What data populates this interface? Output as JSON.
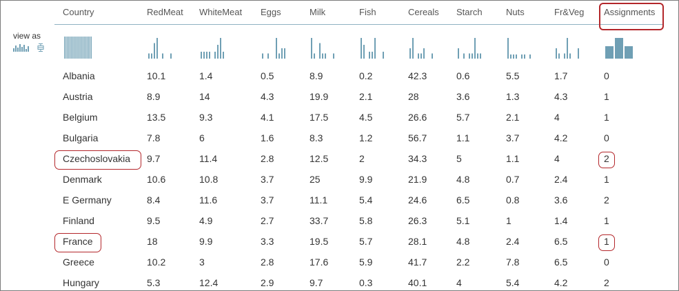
{
  "view_as": {
    "label": "view as",
    "options": [
      {
        "icon": "histogram-icon"
      },
      {
        "icon": "boxplot-icon"
      }
    ]
  },
  "columns": [
    "Country",
    "RedMeat",
    "WhiteMeat",
    "Eggs",
    "Milk",
    "Fish",
    "Cereals",
    "Starch",
    "Nuts",
    "Fr&Veg",
    "Assignments"
  ],
  "rows": [
    [
      "Albania",
      "10.1",
      "1.4",
      "0.5",
      "8.9",
      "0.2",
      "42.3",
      "0.6",
      "5.5",
      "1.7",
      "0"
    ],
    [
      "Austria",
      "8.9",
      "14",
      "4.3",
      "19.9",
      "2.1",
      "28",
      "3.6",
      "1.3",
      "4.3",
      "1"
    ],
    [
      "Belgium",
      "13.5",
      "9.3",
      "4.1",
      "17.5",
      "4.5",
      "26.6",
      "5.7",
      "2.1",
      "4",
      "1"
    ],
    [
      "Bulgaria",
      "7.8",
      "6",
      "1.6",
      "8.3",
      "1.2",
      "56.7",
      "1.1",
      "3.7",
      "4.2",
      "0"
    ],
    [
      "Czechoslovakia",
      "9.7",
      "11.4",
      "2.8",
      "12.5",
      "2",
      "34.3",
      "5",
      "1.1",
      "4",
      "2"
    ],
    [
      "Denmark",
      "10.6",
      "10.8",
      "3.7",
      "25",
      "9.9",
      "21.9",
      "4.8",
      "0.7",
      "2.4",
      "1"
    ],
    [
      "E Germany",
      "8.4",
      "11.6",
      "3.7",
      "11.1",
      "5.4",
      "24.6",
      "6.5",
      "0.8",
      "3.6",
      "2"
    ],
    [
      "Finland",
      "9.5",
      "4.9",
      "2.7",
      "33.7",
      "5.8",
      "26.3",
      "5.1",
      "1",
      "1.4",
      "1"
    ],
    [
      "France",
      "18",
      "9.9",
      "3.3",
      "19.5",
      "5.7",
      "28.1",
      "4.8",
      "2.4",
      "6.5",
      "1"
    ],
    [
      "Greece",
      "10.2",
      "3",
      "2.8",
      "17.6",
      "5.9",
      "41.7",
      "2.2",
      "7.8",
      "6.5",
      "0"
    ],
    [
      "Hungary",
      "5.3",
      "12.4",
      "2.9",
      "9.7",
      "0.3",
      "40.1",
      "4",
      "5.4",
      "4.2",
      "2"
    ]
  ],
  "highlights": {
    "header_column": "Assignments",
    "circled_rows": [
      "Czechoslovakia",
      "France"
    ]
  },
  "colors": {
    "bar": "#6f9fb4",
    "highlight": "#b3262a",
    "text": "#333333"
  }
}
